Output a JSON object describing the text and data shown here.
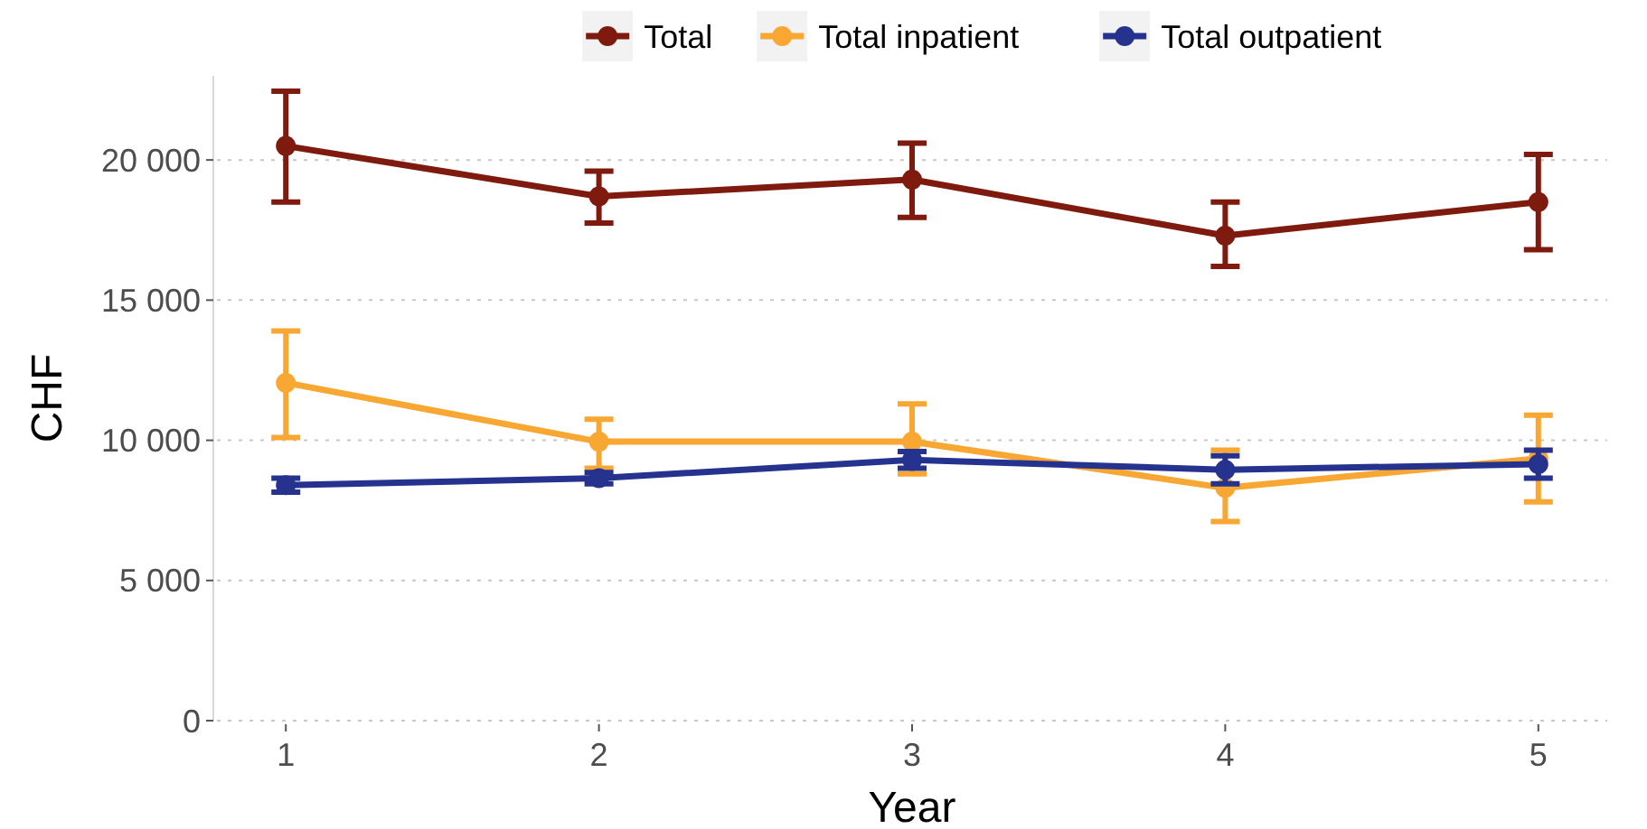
{
  "chart_data": {
    "type": "line",
    "xlabel": "Year",
    "ylabel": "CHF",
    "x": [
      1,
      2,
      3,
      4,
      5
    ],
    "xlim": [
      0.78,
      5.22
    ],
    "xticks": [
      1,
      2,
      3,
      4,
      5
    ],
    "ylim": [
      0,
      23000
    ],
    "yticks": [
      {
        "value": 0,
        "label": "0"
      },
      {
        "value": 5000,
        "label": "5 000"
      },
      {
        "value": 10000,
        "label": "10 000"
      },
      {
        "value": 15000,
        "label": "15 000"
      },
      {
        "value": 20000,
        "label": "20 000"
      }
    ],
    "grid": "y",
    "legend": "top",
    "marker": "circle",
    "line_style": "solid",
    "series": [
      {
        "name": "Total",
        "color": "#7f1a0e",
        "values": [
          20500,
          18700,
          19300,
          17300,
          18500
        ],
        "errors": [
          [
            18500,
            22450
          ],
          [
            17750,
            19600
          ],
          [
            17950,
            20600
          ],
          [
            16200,
            18500
          ],
          [
            16800,
            20200
          ]
        ]
      },
      {
        "name": "Total inpatient",
        "color": "#f8a733",
        "values": [
          12050,
          9950,
          9950,
          8300,
          9350
        ],
        "errors": [
          [
            10100,
            13900
          ],
          [
            9000,
            10750
          ],
          [
            8800,
            11300
          ],
          [
            7100,
            9650
          ],
          [
            7800,
            10900
          ]
        ]
      },
      {
        "name": "Total outpatient",
        "color": "#25338f",
        "values": [
          8400,
          8650,
          9300,
          8950,
          9150
        ],
        "errors": [
          250,
          200,
          300,
          500,
          500
        ]
      }
    ]
  }
}
